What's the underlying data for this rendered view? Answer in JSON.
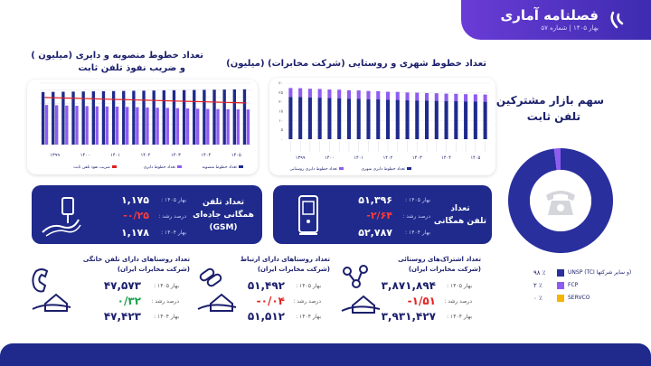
{
  "header": {
    "title": "فصلنامه آماری",
    "subtitle": "بهار ۱۴۰۵ | شماره ۵۷"
  },
  "chart_left": {
    "title_line1": "تعداد خطوط منصوبه و دایری (میلیون )",
    "title_line2": "و ضریب نفوذ تلفن ثابت",
    "legend": [
      "تعداد خطوط منصوبه",
      "تعداد خطوط دایری",
      "ضریب نفوذ تلفن ثابت"
    ]
  },
  "chart_right": {
    "title": "تعداد خطوط شهری و روستایی (شرکت مخابرات) (میلیون)",
    "legend": [
      "تعداد خطوط دایری شهری",
      "تعداد خطوط دایری روستایی"
    ],
    "y_ticks": [
      "۳۰",
      "۲۵",
      "۲۰",
      "۱۵",
      "۱۰",
      "۵",
      "۰"
    ],
    "year_labels": [
      "۱۳۹۹",
      "۱۴۰۰",
      "۱۴۰۱",
      "۱۴۰۲",
      "۱۴۰۳",
      "۱۴۰۴",
      "۱۴۰۵"
    ]
  },
  "chart_data": [
    {
      "type": "bar",
      "title": "تعداد خطوط منصوبه و دایری (میلیون ) و ضریب نفوذ تلفن ثابت",
      "series": [
        {
          "name": "تعداد خطوط منصوبه",
          "values": [
            38.5,
            38.6,
            38.7,
            38.8,
            38.9,
            39.0,
            39.1,
            39.2,
            39.3,
            39.4,
            39.5,
            39.6,
            39.7,
            39.8,
            39.9,
            40.0,
            40.1,
            40.2,
            40.3,
            40.4,
            40.5
          ]
        },
        {
          "name": "تعداد خطوط دایری",
          "values": [
            29.0,
            28.8,
            28.6,
            28.4,
            28.2,
            28.0,
            27.9,
            27.8,
            27.6,
            27.4,
            27.2,
            27.0,
            26.9,
            26.7,
            26.5,
            26.3,
            26.1,
            26.0,
            25.9,
            25.8,
            25.7
          ]
        },
        {
          "name": "ضریب نفوذ تلفن ثابت",
          "values": [
            34.5,
            34.3,
            34.1,
            33.9,
            33.7,
            33.5,
            33.3,
            33.1,
            32.9,
            32.7,
            32.5,
            32.3,
            32.1,
            31.9,
            31.7,
            31.5,
            31.3,
            31.1,
            30.9,
            30.7,
            30.5
          ]
        }
      ],
      "year_labels": [
        "۱۳۹۹",
        "۱۴۰۰",
        "۱۴۰۱",
        "۱۴۰۲",
        "۱۴۰۳",
        "۱۴۰۴",
        "۱۴۰۵"
      ],
      "ylim": [
        0,
        45
      ]
    },
    {
      "type": "bar",
      "title": "تعداد خطوط شهری و روستایی (شرکت مخابرات) (میلیون)",
      "series": [
        {
          "name": "تعداد خطوط دایری شهری",
          "values": [
            22.6,
            22.5,
            22.3,
            22.2,
            22.0,
            21.9,
            21.7,
            21.6,
            21.4,
            21.3,
            21.1,
            21.0,
            20.8,
            20.7,
            20.6,
            20.5,
            20.4,
            20.3,
            20.2,
            20.1,
            20.0
          ]
        },
        {
          "name": "تعداد خطوط دایری روستایی",
          "values": [
            4.8,
            4.8,
            4.7,
            4.7,
            4.6,
            4.6,
            4.5,
            4.5,
            4.4,
            4.4,
            4.3,
            4.3,
            4.2,
            4.2,
            4.1,
            4.1,
            4.0,
            4.0,
            3.9,
            3.9,
            3.9
          ]
        }
      ],
      "ylim": [
        0,
        30
      ]
    },
    {
      "type": "pie",
      "title": "سهم بازار مشترکین تلفن ثابت",
      "categories": [
        "UNSP (TCI و سایر شرکتها)",
        "FCP",
        "SERVCO"
      ],
      "values": [
        98,
        2,
        0
      ]
    }
  ],
  "market": {
    "title_line1": "سهم بازار مشترکین",
    "title_line2": "تلفن ثابت",
    "items": [
      {
        "label": "UNSP (TCI و سایر شرکتها)",
        "pct": "۹۸ ٪",
        "color": "#2a2f9e"
      },
      {
        "label": "FCP",
        "pct": "۲ ٪",
        "color": "#8f5cf0"
      },
      {
        "label": "SERVCO",
        "pct": "۰ ٪",
        "color": "#f5b400"
      }
    ]
  },
  "card_gsm": {
    "label_line1": "تعداد تلفن",
    "label_line2": "همگانی جاده‌ای",
    "label_line3": "(GSM)",
    "k1": "بهار ۱۴۰۵ :",
    "v1": "۱,۱۷۵",
    "k2": "درصد رشد :",
    "v2": "-۰/۲۵",
    "k3": "بهار ۱۴۰۴ :",
    "v3": "۱,۱۷۸"
  },
  "card_public": {
    "label_line1": "تعداد",
    "label_line2": "تلفن همگانی",
    "k1": "بهار ۱۴۰۵ :",
    "v1": "۵۱,۳۹۶",
    "k2": "درصد رشد :",
    "v2": "-۲/۶۴",
    "k3": "بهار ۱۴۰۴ :",
    "v3": "۵۲,۷۸۷"
  },
  "stat_rural_phone": {
    "title_line1": "تعداد روستاهای دارای تلفن خانگی",
    "title_line2": "(شرکت مخابرات ایران)",
    "k1": "بهار ۱۴۰۵ :",
    "v1": "۴۷,۵۷۳",
    "k2": "درصد رشد :",
    "v2": "۰/۳۲",
    "k3": "بهار ۱۴۰۴ :",
    "v3": "۴۷,۴۲۳"
  },
  "stat_rural_link": {
    "title_line1": "تعداد روستاهای دارای ارتباط",
    "title_line2": "(شرکت مخابرات ایران)",
    "k1": "بهار ۱۴۰۵ :",
    "v1": "۵۱,۴۹۲",
    "k2": "درصد رشد :",
    "v2": "-۰/۰۴",
    "k3": "بهار ۱۴۰۴ :",
    "v3": "۵۱,۵۱۲"
  },
  "stat_rural_subs": {
    "title_line1": "تعداد اشتراک‌های روستائی",
    "title_line2": "(شرکت مخابرات ایران)",
    "k1": "بهار ۱۴۰۵ :",
    "v1": "۳,۸۷۱,۸۹۴",
    "k2": "درصد رشد :",
    "v2": "-۱/۵۱",
    "k3": "بهار ۱۴۰۴ :",
    "v3": "۳,۹۳۱,۴۲۷"
  }
}
